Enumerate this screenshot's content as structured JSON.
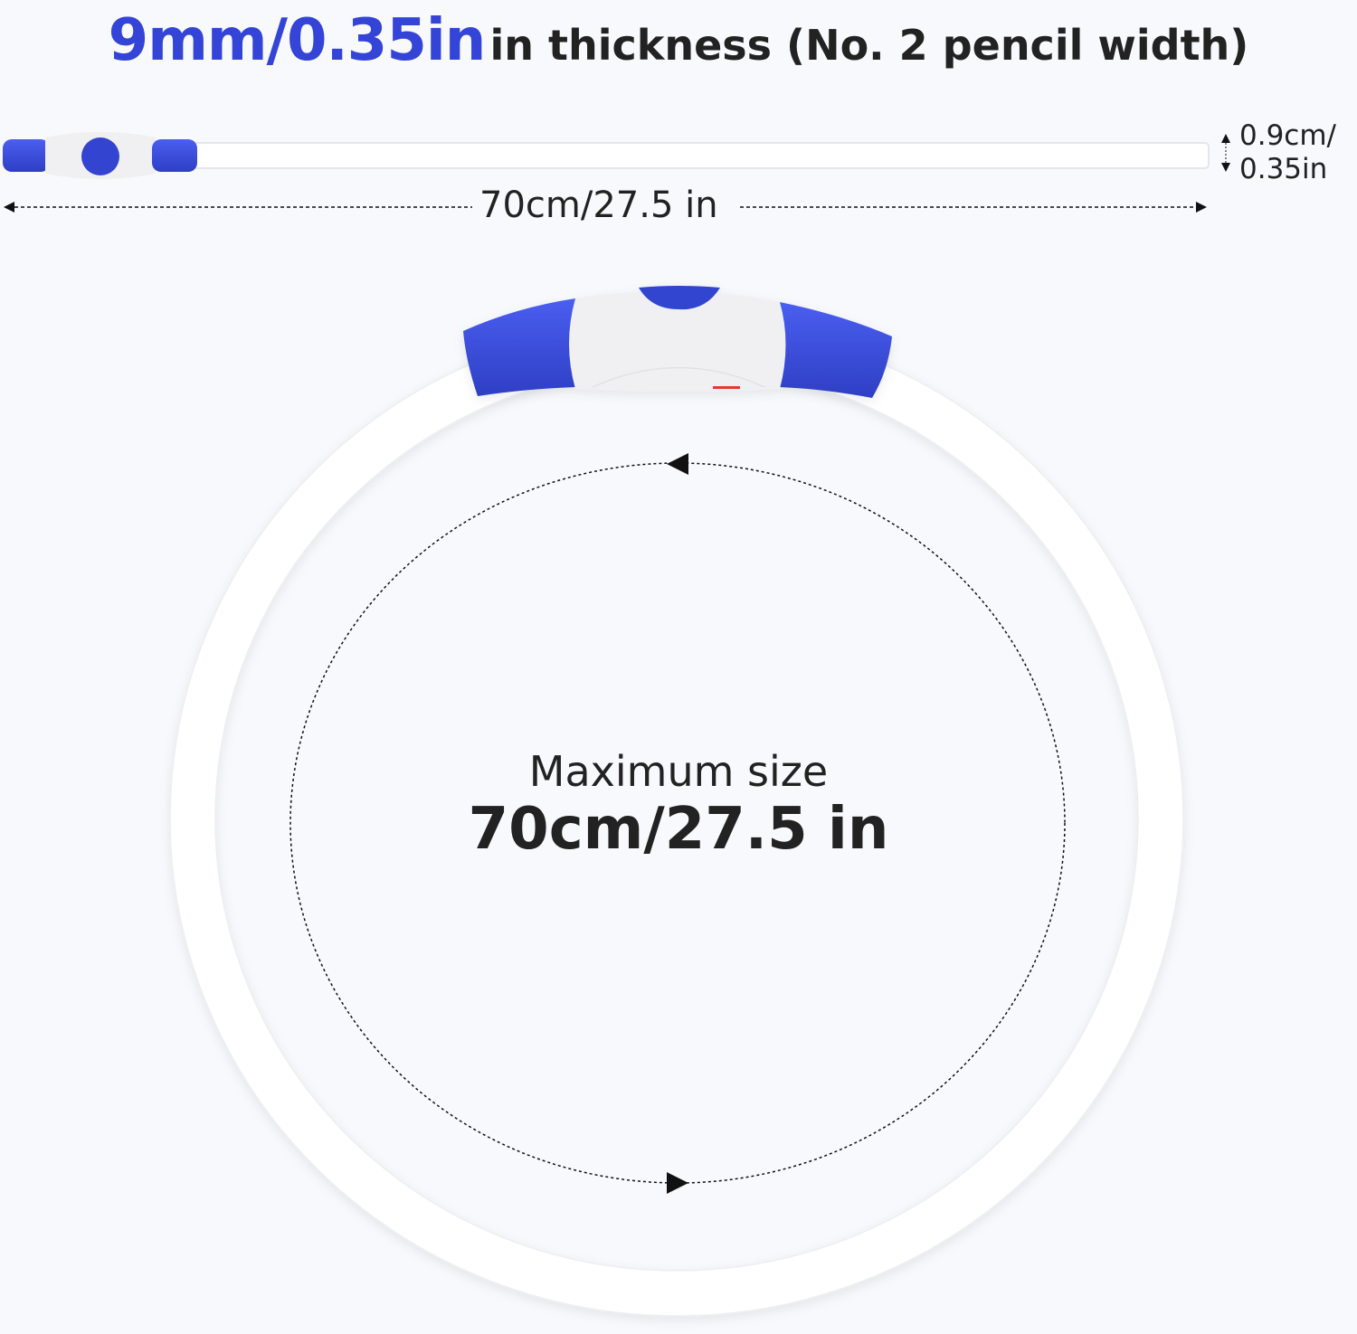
{
  "headline": {
    "highlight": "9mm/0.35in",
    "rest": "in thickness (No. 2 pencil width)"
  },
  "thickness_label": {
    "line1": "0.9cm/",
    "line2": "0.35in"
  },
  "length_label": "70cm/27.5 in",
  "ring_label": {
    "line1": "Maximum size",
    "line2": "70cm/27.5 in"
  },
  "colors": {
    "accent": "#3344d6",
    "text": "#222222",
    "background": "#f8f9fc",
    "tube": "#ffffff",
    "indicator": "#e53935"
  }
}
